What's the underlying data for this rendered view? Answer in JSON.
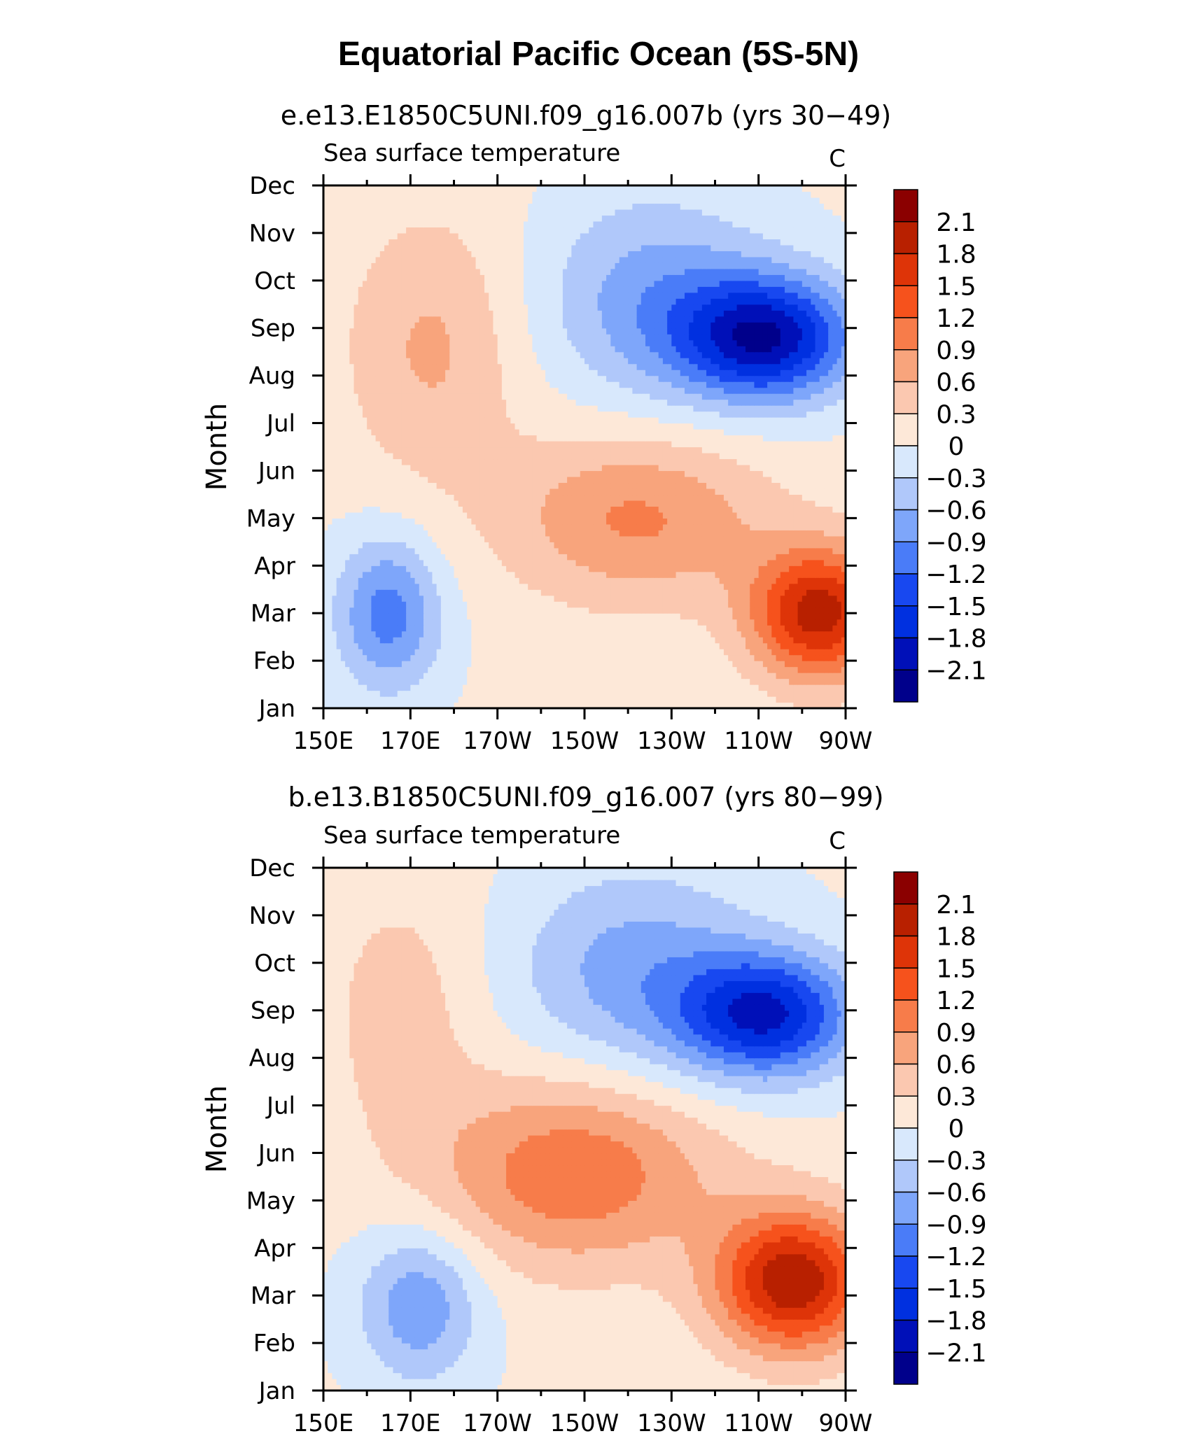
{
  "title": "Equatorial Pacific Ocean (5S-5N)",
  "colors": {
    "levels": [
      "#00008b",
      "#0010b8",
      "#0030e0",
      "#1848f0",
      "#4a7cf8",
      "#7ea6fa",
      "#b0c8fa",
      "#d8e8fc",
      "#fde8d8",
      "#fbc8b0",
      "#f8a47c",
      "#f77c4a",
      "#f6521c",
      "#de3408",
      "#b82000",
      "#8b0000"
    ]
  },
  "chart_data": [
    {
      "type": "heatmap",
      "title": "e.e13.E1850C5UNI.f09_g16.007b (yrs 30−49)",
      "left_string": "Sea surface temperature",
      "right_string": "C",
      "ylabel": "Month",
      "xlabel": "",
      "x_tick_labels": [
        "150E",
        "170E",
        "170W",
        "150W",
        "130W",
        "110W",
        "90W"
      ],
      "x": [
        150,
        170,
        190,
        210,
        230,
        250,
        270
      ],
      "xlim": [
        150,
        270
      ],
      "y_tick_labels": [
        "Jan",
        "Feb",
        "Mar",
        "Apr",
        "May",
        "Jun",
        "Jul",
        "Aug",
        "Sep",
        "Oct",
        "Nov",
        "Dec"
      ],
      "ylim": [
        1,
        12
      ],
      "colorbar_levels": [
        "2.1",
        "1.8",
        "1.5",
        "1.2",
        "0.9",
        "0.6",
        "0.3",
        "0",
        "−0.3",
        "−0.6",
        "−0.9",
        "−1.2",
        "−1.5",
        "−1.8",
        "−2.1"
      ],
      "features": [
        {
          "name": "cold-pool",
          "lon": 252,
          "month": 8.8,
          "peak": -2.0,
          "lon_width": 20,
          "month_width": 1.3
        },
        {
          "name": "cold-lobe",
          "lon": 226,
          "month": 9.6,
          "peak": -0.8,
          "lon_width": 26,
          "month_width": 2.2
        },
        {
          "name": "warm-pool",
          "lon": 264,
          "month": 3.0,
          "peak": 1.9,
          "lon_width": 16,
          "month_width": 1.4
        },
        {
          "name": "warm-tongue",
          "lon": 222,
          "month": 5.0,
          "peak": 0.9,
          "lon_width": 30,
          "month_width": 1.8
        },
        {
          "name": "west-cold",
          "lon": 165,
          "month": 3.0,
          "peak": -1.1,
          "lon_width": 12,
          "month_width": 1.6
        },
        {
          "name": "west-warm",
          "lon": 175,
          "month": 8.6,
          "peak": 0.6,
          "lon_width": 20,
          "month_width": 2.8
        }
      ]
    },
    {
      "type": "heatmap",
      "title": "b.e13.B1850C5UNI.f09_g16.007 (yrs 80−99)",
      "left_string": "Sea surface temperature",
      "right_string": "C",
      "ylabel": "Month",
      "xlabel": "",
      "x_tick_labels": [
        "150E",
        "170E",
        "170W",
        "150W",
        "130W",
        "110W",
        "90W"
      ],
      "x": [
        150,
        170,
        190,
        210,
        230,
        250,
        270
      ],
      "xlim": [
        150,
        270
      ],
      "y_tick_labels": [
        "Jan",
        "Feb",
        "Mar",
        "Apr",
        "May",
        "Jun",
        "Jul",
        "Aug",
        "Sep",
        "Oct",
        "Nov",
        "Dec"
      ],
      "ylim": [
        1,
        12
      ],
      "colorbar_levels": [
        "2.1",
        "1.8",
        "1.5",
        "1.2",
        "0.9",
        "0.6",
        "0.3",
        "0",
        "−0.3",
        "−0.6",
        "−0.9",
        "−1.2",
        "−1.5",
        "−1.8",
        "−2.1"
      ],
      "features": [
        {
          "name": "cold-pool",
          "lon": 252,
          "month": 8.9,
          "peak": -1.8,
          "lon_width": 20,
          "month_width": 1.3
        },
        {
          "name": "cold-lobe",
          "lon": 222,
          "month": 9.8,
          "peak": -0.8,
          "lon_width": 28,
          "month_width": 2.2
        },
        {
          "name": "warm-pool",
          "lon": 258,
          "month": 3.3,
          "peak": 2.0,
          "lon_width": 18,
          "month_width": 1.5
        },
        {
          "name": "warm-tongue",
          "lon": 208,
          "month": 5.6,
          "peak": 1.1,
          "lon_width": 32,
          "month_width": 2.0
        },
        {
          "name": "west-cold",
          "lon": 172,
          "month": 2.8,
          "peak": -0.9,
          "lon_width": 14,
          "month_width": 1.6
        },
        {
          "name": "west-warm",
          "lon": 168,
          "month": 9.0,
          "peak": 0.4,
          "lon_width": 18,
          "month_width": 2.8
        }
      ]
    }
  ]
}
